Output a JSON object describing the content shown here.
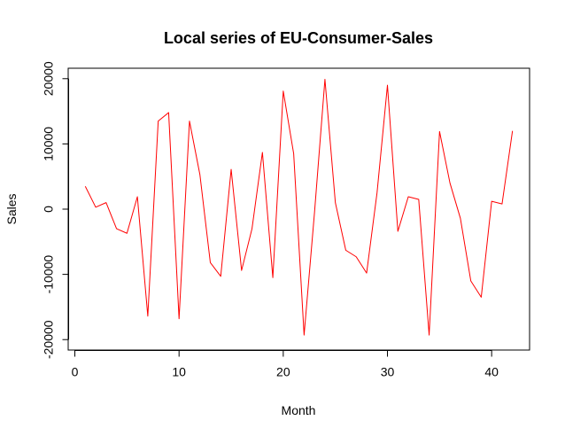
{
  "chart_data": {
    "type": "line",
    "title": "Local series of EU-Consumer-Sales",
    "xlabel": "Month",
    "ylabel": "Sales",
    "xlim": [
      1,
      42
    ],
    "ylim": [
      -20000,
      20000
    ],
    "x_ticks": [
      0,
      10,
      20,
      30,
      40
    ],
    "y_ticks": [
      -20000,
      -10000,
      0,
      10000,
      20000
    ],
    "x_tick_labels": [
      "0",
      "10",
      "20",
      "30",
      "40"
    ],
    "y_tick_labels": [
      "-20000",
      "-10000",
      "0",
      "10000",
      "20000"
    ],
    "grid": false,
    "legend": "none",
    "line_color": "#FF0000",
    "series": [
      {
        "x": [
          1,
          2,
          3,
          4,
          5,
          6,
          7,
          8,
          9,
          10,
          11,
          12,
          13,
          14,
          15,
          16,
          17,
          18,
          19,
          20,
          21,
          22,
          23,
          24,
          25,
          26,
          27,
          28,
          29,
          30,
          31,
          32,
          33,
          34,
          35,
          36,
          37,
          38,
          39,
          40,
          41,
          42
        ],
        "values": [
          3500,
          300,
          1000,
          -3000,
          -3700,
          1900,
          -16400,
          13500,
          14800,
          -16800,
          13500,
          5300,
          -8200,
          -10300,
          6100,
          -9400,
          -3000,
          8700,
          -10500,
          18100,
          8500,
          -19300,
          -500,
          19900,
          1000,
          -6300,
          -7300,
          -9800,
          2500,
          19000,
          -3400,
          1900,
          1500,
          -19300,
          11900,
          4000,
          -1400,
          -11000,
          -13500,
          1200,
          800,
          12000
        ]
      }
    ]
  }
}
